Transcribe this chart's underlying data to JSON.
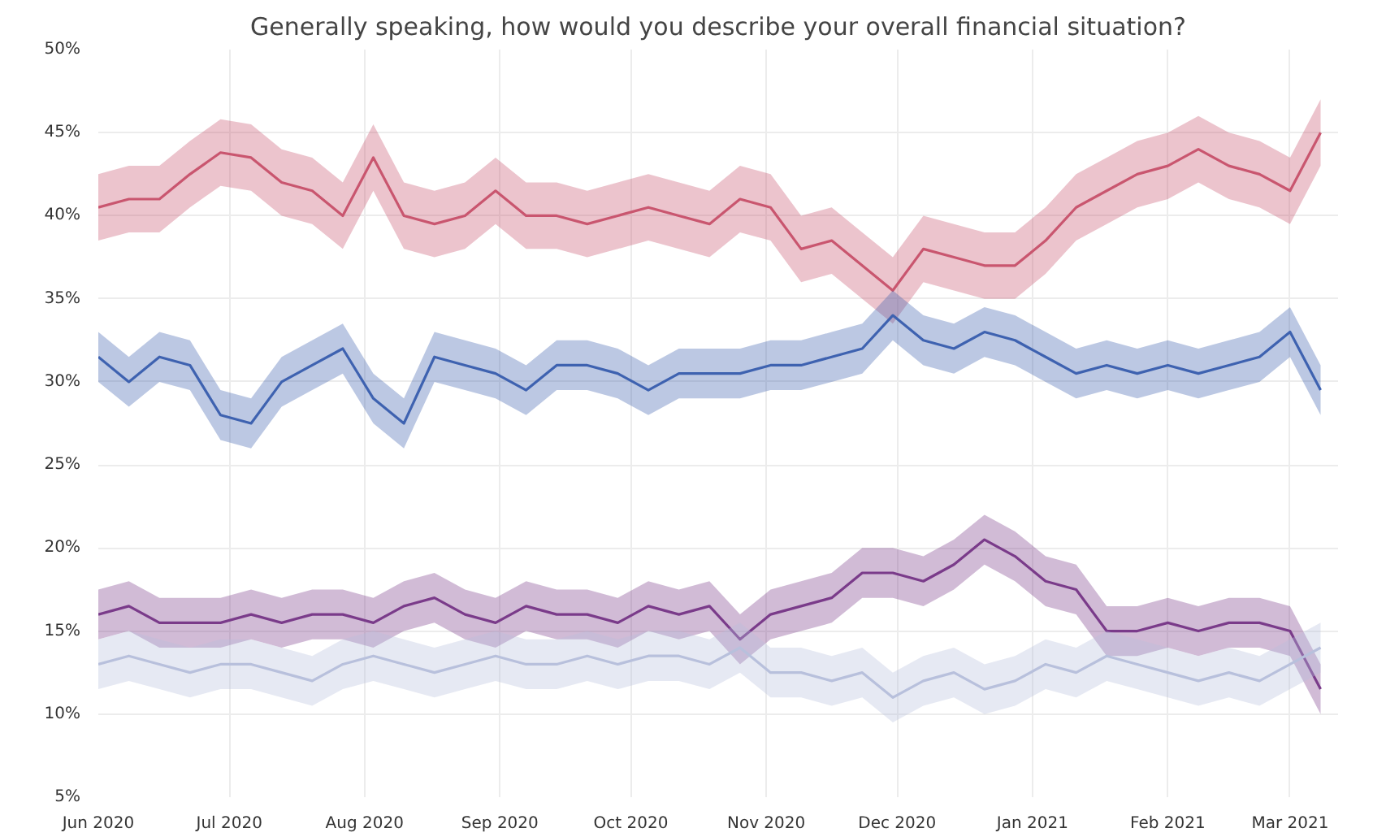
{
  "chart_data": {
    "type": "line",
    "title": "Generally speaking, how would you describe your overall financial situation?",
    "x": [
      "2020-06-01",
      "2020-06-08",
      "2020-06-15",
      "2020-06-22",
      "2020-06-29",
      "2020-07-06",
      "2020-07-13",
      "2020-07-20",
      "2020-07-27",
      "2020-08-03",
      "2020-08-10",
      "2020-08-17",
      "2020-08-24",
      "2020-08-31",
      "2020-09-07",
      "2020-09-14",
      "2020-09-21",
      "2020-09-28",
      "2020-10-05",
      "2020-10-12",
      "2020-10-19",
      "2020-10-26",
      "2020-11-02",
      "2020-11-09",
      "2020-11-16",
      "2020-11-23",
      "2020-11-30",
      "2020-12-07",
      "2020-12-14",
      "2020-12-21",
      "2020-12-28",
      "2021-01-04",
      "2021-01-11",
      "2021-01-18",
      "2021-01-25",
      "2021-02-01",
      "2021-02-08",
      "2021-02-15",
      "2021-02-22",
      "2021-03-01",
      "2021-03-08"
    ],
    "series": [
      {
        "color": "#c9566f",
        "values": [
          40.5,
          41,
          41,
          42.5,
          43.8,
          43.5,
          42,
          41.5,
          40,
          43.5,
          40,
          39.5,
          40,
          41.5,
          40,
          40,
          39.5,
          40,
          40.5,
          40,
          39.5,
          41,
          40.5,
          38,
          38.5,
          37,
          35.5,
          38,
          37.5,
          37,
          37,
          38.5,
          40.5,
          41.5,
          42.5,
          43,
          44,
          43,
          42.5,
          41.5,
          45
        ],
        "lower": [
          38.5,
          39,
          39,
          40.5,
          41.8,
          41.5,
          40,
          39.5,
          38,
          41.5,
          38,
          37.5,
          38,
          39.5,
          38,
          38,
          37.5,
          38,
          38.5,
          38,
          37.5,
          39,
          38.5,
          36,
          36.5,
          35,
          33.5,
          36,
          35.5,
          35,
          35,
          36.5,
          38.5,
          39.5,
          40.5,
          41,
          42,
          41,
          40.5,
          39.5,
          43
        ],
        "upper": [
          42.5,
          43,
          43,
          44.5,
          45.8,
          45.5,
          44,
          43.5,
          42,
          45.5,
          42,
          41.5,
          42,
          43.5,
          42,
          42,
          41.5,
          42,
          42.5,
          42,
          41.5,
          43,
          42.5,
          40,
          40.5,
          39,
          37.5,
          40,
          39.5,
          39,
          39,
          40.5,
          42.5,
          43.5,
          44.5,
          45,
          46,
          45,
          44.5,
          43.5,
          47
        ]
      },
      {
        "color": "#3e62b0",
        "values": [
          31.5,
          30,
          31.5,
          31,
          28,
          27.5,
          30,
          31,
          32,
          29,
          27.5,
          31.5,
          31,
          30.5,
          29.5,
          31,
          31,
          30.5,
          29.5,
          30.5,
          30.5,
          30.5,
          31,
          31,
          31.5,
          32,
          34,
          32.5,
          32,
          33,
          32.5,
          31.5,
          30.5,
          31,
          30.5,
          31,
          30.5,
          31,
          31.5,
          33,
          29.5
        ],
        "lower": [
          30,
          28.5,
          30,
          29.5,
          26.5,
          26,
          28.5,
          29.5,
          30.5,
          27.5,
          26,
          30,
          29.5,
          29,
          28,
          29.5,
          29.5,
          29,
          28,
          29,
          29,
          29,
          29.5,
          29.5,
          30,
          30.5,
          32.5,
          31,
          30.5,
          31.5,
          31,
          30,
          29,
          29.5,
          29,
          29.5,
          29,
          29.5,
          30,
          31.5,
          28
        ],
        "upper": [
          33,
          31.5,
          33,
          32.5,
          29.5,
          29,
          31.5,
          32.5,
          33.5,
          30.5,
          29,
          33,
          32.5,
          32,
          31,
          32.5,
          32.5,
          32,
          31,
          32,
          32,
          32,
          32.5,
          32.5,
          33,
          33.5,
          35.5,
          34,
          33.5,
          34.5,
          34,
          33,
          32,
          32.5,
          32,
          32.5,
          32,
          32.5,
          33,
          34.5,
          31
        ]
      },
      {
        "color": "#7a3b8a",
        "values": [
          16,
          16.5,
          15.5,
          15.5,
          15.5,
          16,
          15.5,
          16,
          16,
          15.5,
          16.5,
          17,
          16,
          15.5,
          16.5,
          16,
          16,
          15.5,
          16.5,
          16,
          16.5,
          14.5,
          16,
          16.5,
          17,
          18.5,
          18.5,
          18,
          19,
          20.5,
          19.5,
          18,
          17.5,
          15,
          15,
          15.5,
          15,
          15.5,
          15.5,
          15,
          11.5
        ],
        "lower": [
          14.5,
          15,
          14,
          14,
          14,
          14.5,
          14,
          14.5,
          14.5,
          14,
          15,
          15.5,
          14.5,
          14,
          15,
          14.5,
          14.5,
          14,
          15,
          14.5,
          15,
          13,
          14.5,
          15,
          15.5,
          17,
          17,
          16.5,
          17.5,
          19,
          18,
          16.5,
          16,
          13.5,
          13.5,
          14,
          13.5,
          14,
          14,
          13.5,
          10
        ],
        "upper": [
          17.5,
          18,
          17,
          17,
          17,
          17.5,
          17,
          17.5,
          17.5,
          17,
          18,
          18.5,
          17.5,
          17,
          18,
          17.5,
          17.5,
          17,
          18,
          17.5,
          18,
          16,
          17.5,
          18,
          18.5,
          20,
          20,
          19.5,
          20.5,
          22,
          21,
          19.5,
          19,
          16.5,
          16.5,
          17,
          16.5,
          17,
          17,
          16.5,
          13
        ]
      },
      {
        "color": "#b8c0dc",
        "values": [
          13,
          13.5,
          13,
          12.5,
          13,
          13,
          12.5,
          12,
          13,
          13.5,
          13,
          12.5,
          13,
          13.5,
          13,
          13,
          13.5,
          13,
          13.5,
          13.5,
          13,
          14,
          12.5,
          12.5,
          12,
          12.5,
          11,
          12,
          12.5,
          11.5,
          12,
          13,
          12.5,
          13.5,
          13,
          12.5,
          12,
          12.5,
          12,
          13,
          14
        ],
        "lower": [
          11.5,
          12,
          11.5,
          11,
          11.5,
          11.5,
          11,
          10.5,
          11.5,
          12,
          11.5,
          11,
          11.5,
          12,
          11.5,
          11.5,
          12,
          11.5,
          12,
          12,
          11.5,
          12.5,
          11,
          11,
          10.5,
          11,
          9.5,
          10.5,
          11,
          10,
          10.5,
          11.5,
          11,
          12,
          11.5,
          11,
          10.5,
          11,
          10.5,
          11.5,
          12.5
        ],
        "upper": [
          14.5,
          15,
          14.5,
          14,
          14.5,
          14.5,
          14,
          13.5,
          14.5,
          15,
          14.5,
          14,
          14.5,
          15,
          14.5,
          14.5,
          15,
          14.5,
          15,
          15,
          14.5,
          15.5,
          14,
          14,
          13.5,
          14,
          12.5,
          13.5,
          14,
          13,
          13.5,
          14.5,
          14,
          15,
          14.5,
          14,
          13.5,
          14,
          13.5,
          14.5,
          15.5
        ]
      }
    ],
    "xlim": [
      "2020-06-01",
      "2021-03-12"
    ],
    "xticks": [
      {
        "value": "2020-06-01",
        "label": "Jun 2020"
      },
      {
        "value": "2020-07-01",
        "label": "Jul 2020"
      },
      {
        "value": "2020-08-01",
        "label": "Aug 2020"
      },
      {
        "value": "2020-09-01",
        "label": "Sep 2020"
      },
      {
        "value": "2020-10-01",
        "label": "Oct 2020"
      },
      {
        "value": "2020-11-01",
        "label": "Nov 2020"
      },
      {
        "value": "2020-12-01",
        "label": "Dec 2020"
      },
      {
        "value": "2021-01-01",
        "label": "Jan 2021"
      },
      {
        "value": "2021-02-01",
        "label": "Feb 2021"
      },
      {
        "value": "2021-03-01",
        "label": "Mar 2021"
      }
    ],
    "ylim": [
      5,
      50
    ],
    "yticks": [
      {
        "value": 5,
        "label": "5%"
      },
      {
        "value": 10,
        "label": "10%"
      },
      {
        "value": 15,
        "label": "15%"
      },
      {
        "value": 20,
        "label": "20%"
      },
      {
        "value": 25,
        "label": "25%"
      },
      {
        "value": 30,
        "label": "30%"
      },
      {
        "value": 35,
        "label": "35%"
      },
      {
        "value": 40,
        "label": "40%"
      },
      {
        "value": 45,
        "label": "45%"
      },
      {
        "value": 50,
        "label": "50%"
      }
    ],
    "grid": true
  }
}
